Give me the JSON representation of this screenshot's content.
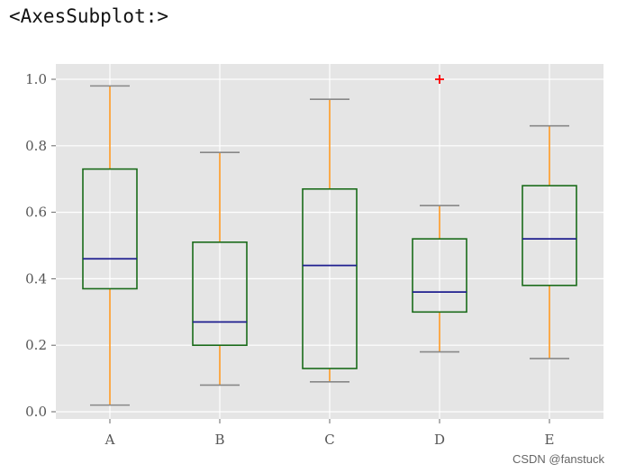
{
  "repr_text": "<AxesSubplot:>",
  "watermark": "CSDN @fanstuck",
  "chart_data": {
    "type": "box",
    "style": "ggplot",
    "grid": true,
    "categories": [
      "A",
      "B",
      "C",
      "D",
      "E"
    ],
    "ylim": [
      0.0,
      1.05
    ],
    "yticks": [
      0.0,
      0.2,
      0.4,
      0.6,
      0.8,
      1.0
    ],
    "ytick_labels": [
      "0.0",
      "0.2",
      "0.4",
      "0.6",
      "0.8",
      "1.0"
    ],
    "boxes": [
      {
        "category": "A",
        "whisker_low": 0.02,
        "q1": 0.37,
        "median": 0.46,
        "q3": 0.73,
        "whisker_high": 0.98,
        "outliers": []
      },
      {
        "category": "B",
        "whisker_low": 0.08,
        "q1": 0.2,
        "median": 0.27,
        "q3": 0.51,
        "whisker_high": 0.78,
        "outliers": []
      },
      {
        "category": "C",
        "whisker_low": 0.09,
        "q1": 0.13,
        "median": 0.44,
        "q3": 0.67,
        "whisker_high": 0.94,
        "outliers": []
      },
      {
        "category": "D",
        "whisker_low": 0.18,
        "q1": 0.3,
        "median": 0.36,
        "q3": 0.52,
        "whisker_high": 0.62,
        "outliers": [
          1.0
        ]
      },
      {
        "category": "E",
        "whisker_low": 0.16,
        "q1": 0.38,
        "median": 0.52,
        "q3": 0.68,
        "whisker_high": 0.86,
        "outliers": []
      }
    ],
    "colors": {
      "box": "#1a6b1a",
      "median": "#1f1f8f",
      "whisker": "#ff9a22",
      "cap": "#888888",
      "flier": "#ff0000",
      "background": "#e5e5e5",
      "grid": "#ffffff"
    }
  }
}
